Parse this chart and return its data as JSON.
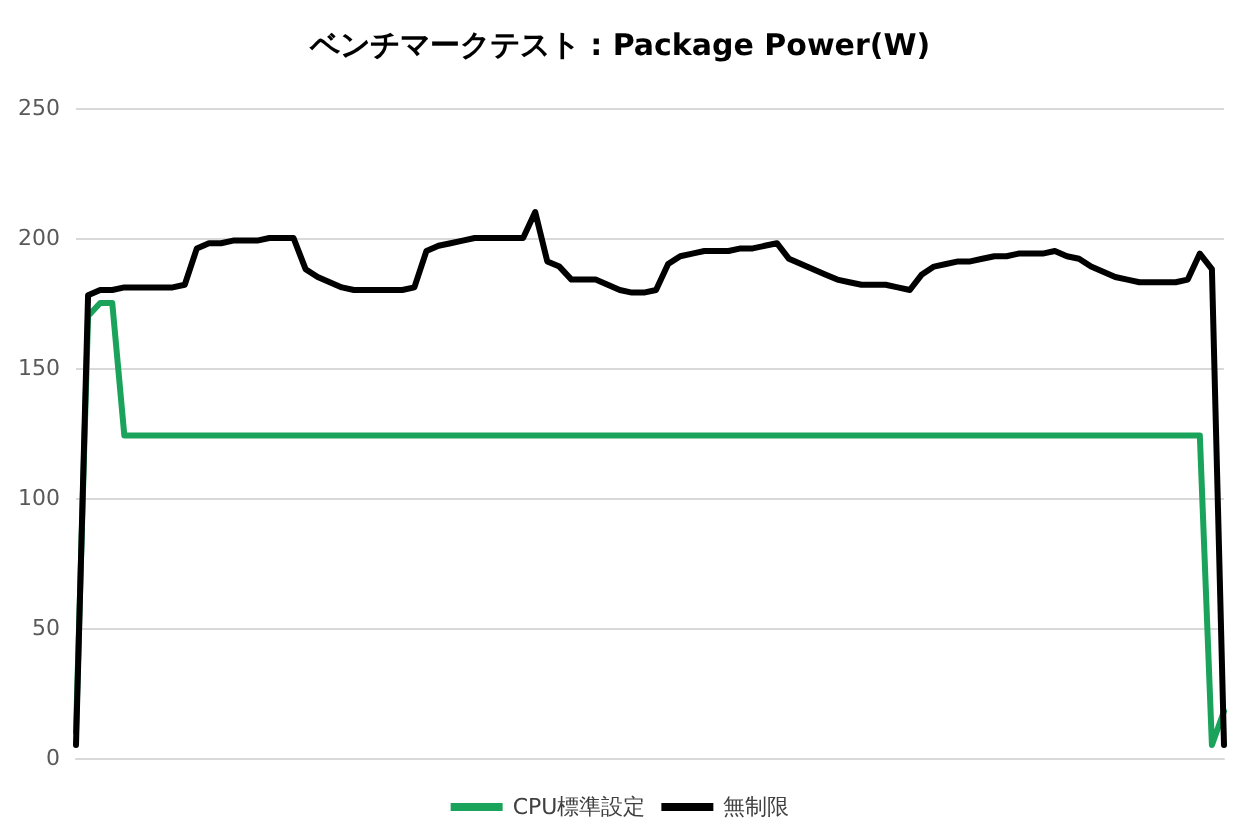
{
  "chart_data": {
    "type": "line",
    "title": "ベンチマークテスト : Package Power(W)",
    "categories": [
      null,
      null,
      null,
      null,
      null,
      null,
      null,
      null,
      null,
      null,
      null,
      null,
      null,
      null,
      null,
      null,
      null,
      null,
      null,
      null,
      null,
      null,
      null,
      null,
      null,
      null,
      null,
      null,
      null,
      null,
      null,
      null,
      null,
      null,
      null,
      null,
      null,
      null,
      null,
      null,
      null,
      null,
      null,
      null,
      null,
      null,
      null,
      null,
      null,
      null,
      null,
      null,
      null,
      null,
      null,
      null,
      null,
      null,
      null,
      null,
      null,
      null,
      null,
      null,
      null,
      null,
      null,
      null,
      null,
      null,
      null,
      null,
      null,
      null,
      null,
      null,
      null,
      null,
      null,
      null,
      null,
      null,
      null,
      null,
      null,
      null,
      null,
      null,
      null,
      null,
      null,
      null,
      null,
      null,
      null,
      null
    ],
    "series": [
      {
        "name": "CPU標準設定",
        "color": "#1aa35a",
        "values": [
          10,
          170,
          175,
          175,
          124,
          124,
          124,
          124,
          124,
          124,
          124,
          124,
          124,
          124,
          124,
          124,
          124,
          124,
          124,
          124,
          124,
          124,
          124,
          124,
          124,
          124,
          124,
          124,
          124,
          124,
          124,
          124,
          124,
          124,
          124,
          124,
          124,
          124,
          124,
          124,
          124,
          124,
          124,
          124,
          124,
          124,
          124,
          124,
          124,
          124,
          124,
          124,
          124,
          124,
          124,
          124,
          124,
          124,
          124,
          124,
          124,
          124,
          124,
          124,
          124,
          124,
          124,
          124,
          124,
          124,
          124,
          124,
          124,
          124,
          124,
          124,
          124,
          124,
          124,
          124,
          124,
          124,
          124,
          124,
          124,
          124,
          124,
          124,
          124,
          124,
          124,
          124,
          124,
          124,
          5,
          18
        ]
      },
      {
        "name": "無制限",
        "color": "#000000",
        "values": [
          5,
          178,
          180,
          180,
          181,
          181,
          181,
          181,
          181,
          182,
          196,
          198,
          198,
          199,
          199,
          199,
          200,
          200,
          200,
          188,
          185,
          183,
          181,
          180,
          180,
          180,
          180,
          180,
          181,
          195,
          197,
          198,
          199,
          200,
          200,
          200,
          200,
          200,
          210,
          191,
          189,
          184,
          184,
          184,
          182,
          180,
          179,
          179,
          180,
          190,
          193,
          194,
          195,
          195,
          195,
          196,
          196,
          197,
          198,
          192,
          190,
          188,
          186,
          184,
          183,
          182,
          182,
          182,
          181,
          180,
          186,
          189,
          190,
          191,
          191,
          192,
          193,
          193,
          194,
          194,
          194,
          195,
          193,
          192,
          189,
          187,
          185,
          184,
          183,
          183,
          183,
          183,
          184,
          194,
          188,
          5
        ]
      }
    ],
    "ylim": [
      0,
      250
    ],
    "yticks": [
      0,
      50,
      100,
      150,
      200,
      250
    ],
    "grid": "y",
    "legend": "bottom",
    "marker": "none",
    "line_style": "solid"
  }
}
